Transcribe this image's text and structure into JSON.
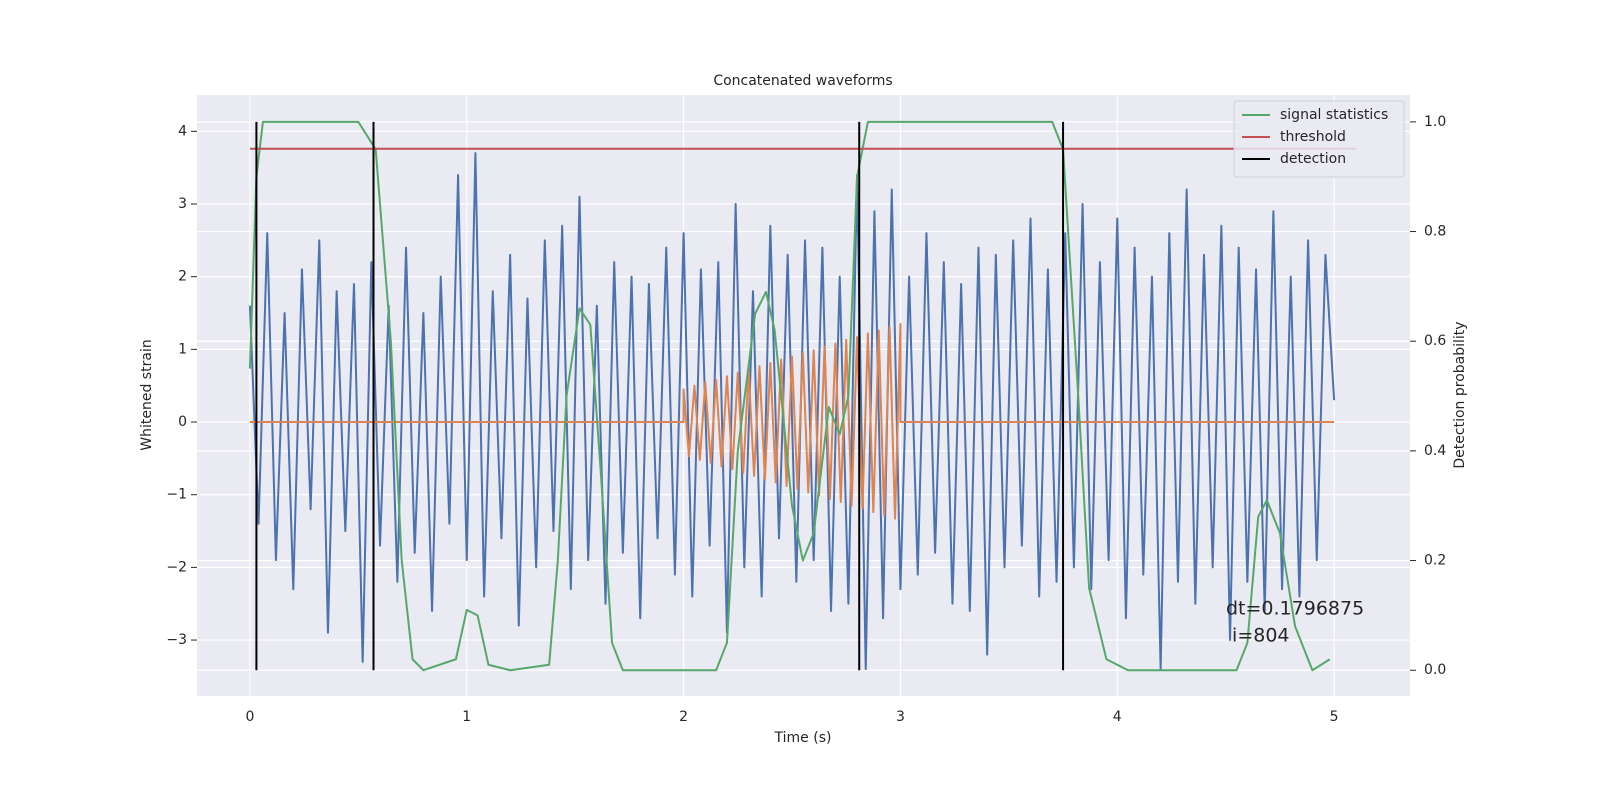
{
  "chart_data": {
    "type": "line",
    "title": "Concatenated waveforms",
    "xlabel": "Time (s)",
    "ylabel": "Whitened strain",
    "y2label": "Detection probability",
    "xlim": [
      -0.244,
      5.35
    ],
    "xticks": [
      0,
      1,
      2,
      3,
      4,
      5
    ],
    "ylim": [
      -3.77,
      4.5
    ],
    "yticks": [
      {
        "value": -3,
        "label": "−3"
      },
      {
        "value": -2,
        "label": "−2"
      },
      {
        "value": -1,
        "label": "−1"
      },
      0,
      1,
      2,
      3,
      4
    ],
    "y2lim": [
      -0.047,
      1.049
    ],
    "y2ticks": [
      {
        "value": 0,
        "label": "0.0"
      },
      {
        "value": 0.2,
        "label": "0.2"
      },
      {
        "value": 0.4,
        "label": "0.4"
      },
      {
        "value": 0.6,
        "label": "0.6"
      },
      {
        "value": 0.8,
        "label": "0.8"
      },
      {
        "value": 1,
        "label": "1.0"
      }
    ],
    "grid": true,
    "legend": "upper right",
    "annotation": [
      "dt=0.1796875",
      " i=804"
    ],
    "series": [
      {
        "color": "#4c72b0",
        "x": [
          0,
          0.04,
          0.08,
          0.12,
          0.16,
          0.2,
          0.24,
          0.28,
          0.32,
          0.36,
          0.4,
          0.44,
          0.48,
          0.52,
          0.56,
          0.6,
          0.64,
          0.68,
          0.72,
          0.76,
          0.8,
          0.84,
          0.88,
          0.92,
          0.96,
          1,
          1.04,
          1.08,
          1.12,
          1.16,
          1.2,
          1.24,
          1.28,
          1.32,
          1.36,
          1.4,
          1.44,
          1.48,
          1.52,
          1.56,
          1.6,
          1.64,
          1.68,
          1.72,
          1.76,
          1.8,
          1.84,
          1.88,
          1.92,
          1.96,
          2,
          2.04,
          2.08,
          2.12,
          2.16,
          2.2,
          2.24,
          2.28,
          2.32,
          2.36,
          2.4,
          2.44,
          2.48,
          2.52,
          2.56,
          2.6,
          2.64,
          2.68,
          2.72,
          2.76,
          2.8,
          2.84,
          2.88,
          2.92,
          2.96,
          3,
          3.04,
          3.08,
          3.12,
          3.16,
          3.2,
          3.24,
          3.28,
          3.32,
          3.36,
          3.4,
          3.44,
          3.48,
          3.52,
          3.56,
          3.6,
          3.64,
          3.68,
          3.72,
          3.76,
          3.8,
          3.84,
          3.88,
          3.92,
          3.96,
          4,
          4.04,
          4.08,
          4.12,
          4.16,
          4.2,
          4.24,
          4.28,
          4.32,
          4.36,
          4.4,
          4.44,
          4.48,
          4.52,
          4.56,
          4.6,
          4.64,
          4.68,
          4.72,
          4.76,
          4.8,
          4.84,
          4.88,
          4.92,
          4.96,
          5
        ],
        "values": [
          1.6,
          -1.4,
          2.6,
          -1.9,
          1.5,
          -2.3,
          2.1,
          -1.2,
          2.5,
          -2.9,
          1.8,
          -1.5,
          1.9,
          -3.3,
          2.2,
          -1.7,
          1.6,
          -2.2,
          2.4,
          -1.8,
          1.5,
          -2.6,
          2.0,
          -1.4,
          3.4,
          -1.9,
          3.7,
          -2.4,
          1.8,
          -1.6,
          2.3,
          -2.8,
          1.7,
          -2.0,
          2.5,
          -1.5,
          2.7,
          -2.3,
          3.1,
          -1.9,
          1.6,
          -2.5,
          2.2,
          -1.8,
          2.0,
          -2.7,
          1.9,
          -1.6,
          2.4,
          -2.1,
          2.6,
          -2.4,
          2.1,
          -1.7,
          2.2,
          -2.9,
          3.0,
          -2.0,
          1.8,
          -2.4,
          2.7,
          -1.6,
          2.3,
          -2.2,
          2.5,
          -1.9,
          2.4,
          -2.6,
          2.0,
          -2.5,
          3.4,
          -3.4,
          2.9,
          -2.7,
          3.2,
          -2.3,
          2.0,
          -2.1,
          2.6,
          -1.8,
          2.2,
          -2.5,
          1.9,
          -2.6,
          2.4,
          -3.2,
          2.3,
          -2.0,
          2.5,
          -1.7,
          2.8,
          -2.4,
          2.1,
          -2.2,
          2.6,
          -2.0,
          3.0,
          -2.3,
          2.2,
          -1.9,
          2.8,
          -2.7,
          2.4,
          -2.1,
          2.0,
          -3.4,
          2.6,
          -2.2,
          3.2,
          -2.5,
          2.3,
          -2.0,
          2.7,
          -3.0,
          2.4,
          -2.2,
          2.1,
          -2.6,
          2.9,
          -2.3,
          2.0,
          -2.4,
          2.5,
          -1.9,
          2.3,
          0.3
        ]
      },
      {
        "color": "#dd8452",
        "x": [
          0,
          2,
          2,
          2.025,
          2.05,
          2.075,
          2.1,
          2.125,
          2.15,
          2.175,
          2.2,
          2.225,
          2.25,
          2.275,
          2.3,
          2.325,
          2.35,
          2.375,
          2.4,
          2.425,
          2.45,
          2.475,
          2.5,
          2.525,
          2.55,
          2.575,
          2.6,
          2.625,
          2.65,
          2.675,
          2.7,
          2.725,
          2.75,
          2.775,
          2.8,
          2.825,
          2.85,
          2.875,
          2.9,
          2.925,
          2.95,
          2.975,
          3,
          3,
          5
        ],
        "values": [
          0,
          0,
          0.45,
          -0.47,
          0.5,
          -0.52,
          0.54,
          -0.56,
          0.58,
          -0.61,
          0.63,
          -0.65,
          0.68,
          -0.7,
          0.72,
          -0.74,
          0.77,
          -0.79,
          0.81,
          -0.83,
          0.86,
          -0.88,
          0.9,
          -0.92,
          0.95,
          -0.97,
          0.99,
          -1.01,
          1.04,
          -1.06,
          1.08,
          -1.1,
          1.13,
          -1.15,
          1.17,
          -1.19,
          1.22,
          -1.24,
          1.26,
          -1.28,
          1.31,
          -1.33,
          1.35,
          0,
          0
        ]
      },
      {
        "name": "signal statistics",
        "color": "#55a868",
        "axis": "y2",
        "x": [
          0,
          0.03,
          0.06,
          0.5,
          0.58,
          0.65,
          0.7,
          0.75,
          0.8,
          0.95,
          1.0,
          1.05,
          1.1,
          1.2,
          1.38,
          1.42,
          1.46,
          1.52,
          1.57,
          1.62,
          1.67,
          1.72,
          2.15,
          2.2,
          2.25,
          2.33,
          2.38,
          2.42,
          2.5,
          2.55,
          2.6,
          2.67,
          2.72,
          2.76,
          2.8,
          2.85,
          3.7,
          3.75,
          3.82,
          3.87,
          3.95,
          4.05,
          4.55,
          4.6,
          4.65,
          4.69,
          4.75,
          4.82,
          4.9,
          4.98
        ],
        "values": [
          0.55,
          0.9,
          1.0,
          1.0,
          0.95,
          0.6,
          0.2,
          0.02,
          0.0,
          0.02,
          0.11,
          0.1,
          0.01,
          0.0,
          0.01,
          0.2,
          0.5,
          0.66,
          0.63,
          0.35,
          0.05,
          0.0,
          0.0,
          0.05,
          0.4,
          0.65,
          0.69,
          0.62,
          0.3,
          0.2,
          0.25,
          0.48,
          0.43,
          0.5,
          0.9,
          1.0,
          1.0,
          0.95,
          0.5,
          0.15,
          0.02,
          0.0,
          0.0,
          0.05,
          0.28,
          0.31,
          0.25,
          0.08,
          0.0,
          0.02
        ]
      },
      {
        "name": "threshold",
        "color": "#c44e52",
        "axis": "y2",
        "x": [
          0,
          5.1
        ],
        "values": [
          0.951,
          0.951
        ]
      },
      {
        "name": "detection",
        "color": "#000000",
        "axis": "y2",
        "kind": "vlines",
        "x": [
          0.03,
          0.57,
          2.81,
          3.75
        ],
        "values": [
          1,
          1,
          1,
          1
        ]
      }
    ]
  }
}
